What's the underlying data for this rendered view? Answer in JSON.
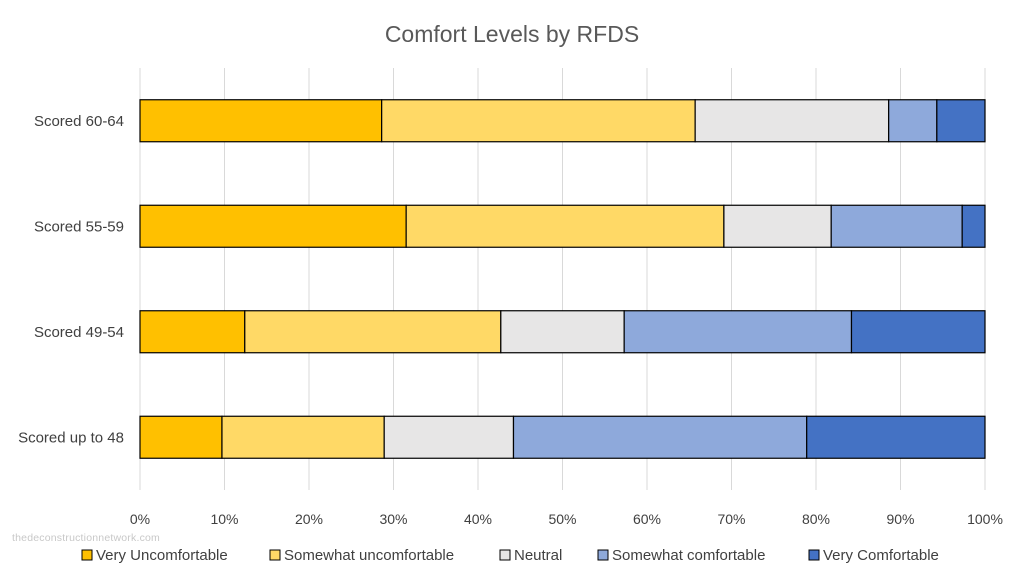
{
  "chart_data": {
    "type": "bar",
    "orientation": "horizontal",
    "stacked": true,
    "normalized_percent": true,
    "title": "Comfort Levels by RFDS",
    "categories": [
      "Scored 60-64",
      "Scored 55-59",
      "Scored 49-54",
      "Scored up to 48"
    ],
    "xlim": [
      0,
      100
    ],
    "x_ticks": [
      "0%",
      "10%",
      "20%",
      "30%",
      "40%",
      "50%",
      "60%",
      "70%",
      "80%",
      "90%",
      "100%"
    ],
    "grid": "vertical",
    "legend_position": "bottom",
    "series": [
      {
        "name": "Very Uncomfortable",
        "color": "#FFC000",
        "values": [
          28.6,
          31.5,
          12.4,
          9.7
        ]
      },
      {
        "name": "Somewhat uncomfortable",
        "color": "#FFD966",
        "values": [
          37.1,
          37.6,
          30.3,
          19.2
        ]
      },
      {
        "name": "Neutral",
        "color": "#E7E6E6",
        "values": [
          22.9,
          12.7,
          14.6,
          15.3
        ]
      },
      {
        "name": "Somewhat comfortable",
        "color": "#8EA9DB",
        "values": [
          5.7,
          15.5,
          26.9,
          34.7
        ]
      },
      {
        "name": "Very Comfortable",
        "color": "#4472C4",
        "values": [
          5.7,
          2.7,
          15.8,
          21.1
        ]
      }
    ]
  },
  "watermark": "thedeconstructionnetwork.com"
}
